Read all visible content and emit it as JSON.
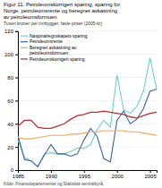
{
  "chart_data": {
    "type": "line",
    "title": "Figur 11. Petroleumskorrigert sparing, sparing for\nNorge, petroleumsrente og beregnet avkastning\nav petroleumsformuen",
    "subtitle": "Tusen kroner per innbygger, faste priser (2005-kr)",
    "annotations": [
      "Kilde: Finansdepartementet og Statistisk sentralbyrå."
    ],
    "x": [
      1985,
      1986,
      1987,
      1988,
      1989,
      1990,
      1991,
      1992,
      1993,
      1994,
      1995,
      1996,
      1997,
      1998,
      1999,
      2000,
      2001,
      2002,
      2003,
      2004,
      2005,
      2006
    ],
    "series": [
      {
        "name": "Nasjonalregnskapets sparing",
        "color": "#6dcfcf",
        "values": [
          26,
          11,
          8,
          3,
          14,
          15,
          14,
          14,
          16,
          19,
          19,
          22,
          35,
          43,
          37,
          82,
          52,
          49,
          55,
          68,
          97,
          70
        ]
      },
      {
        "name": "Petroleumsrente",
        "color": "#3a5faa",
        "values": [
          30,
          9,
          8,
          3,
          13,
          22,
          14,
          14,
          12,
          14,
          26,
          36,
          29,
          10,
          7,
          43,
          51,
          40,
          44,
          53,
          68,
          70
        ]
      },
      {
        "name": "Beregnet avkastning av\npetroleumsformuen",
        "color": "#f0a855",
        "values": [
          28,
          27,
          27,
          28,
          29,
          30,
          30,
          30,
          31,
          31,
          32,
          33,
          33,
          34,
          34,
          34,
          34,
          33,
          33,
          32,
          31,
          30
        ]
      },
      {
        "name": "Petroleumskorrigert sparing",
        "color": "#b83030",
        "values": [
          38,
          43,
          43,
          37,
          36,
          36,
          38,
          40,
          44,
          47,
          48,
          50,
          50,
          51,
          50,
          49,
          48,
          46,
          45,
          47,
          49,
          50
        ]
      }
    ],
    "xlim": [
      1985,
      2006
    ],
    "xticks": [
      1985,
      1990,
      1995,
      2000,
      2005
    ],
    "ylim": [
      0,
      120
    ],
    "yticks": [
      0,
      20,
      40,
      60,
      80,
      100,
      120
    ],
    "grid": "y",
    "legend": "upper left"
  }
}
